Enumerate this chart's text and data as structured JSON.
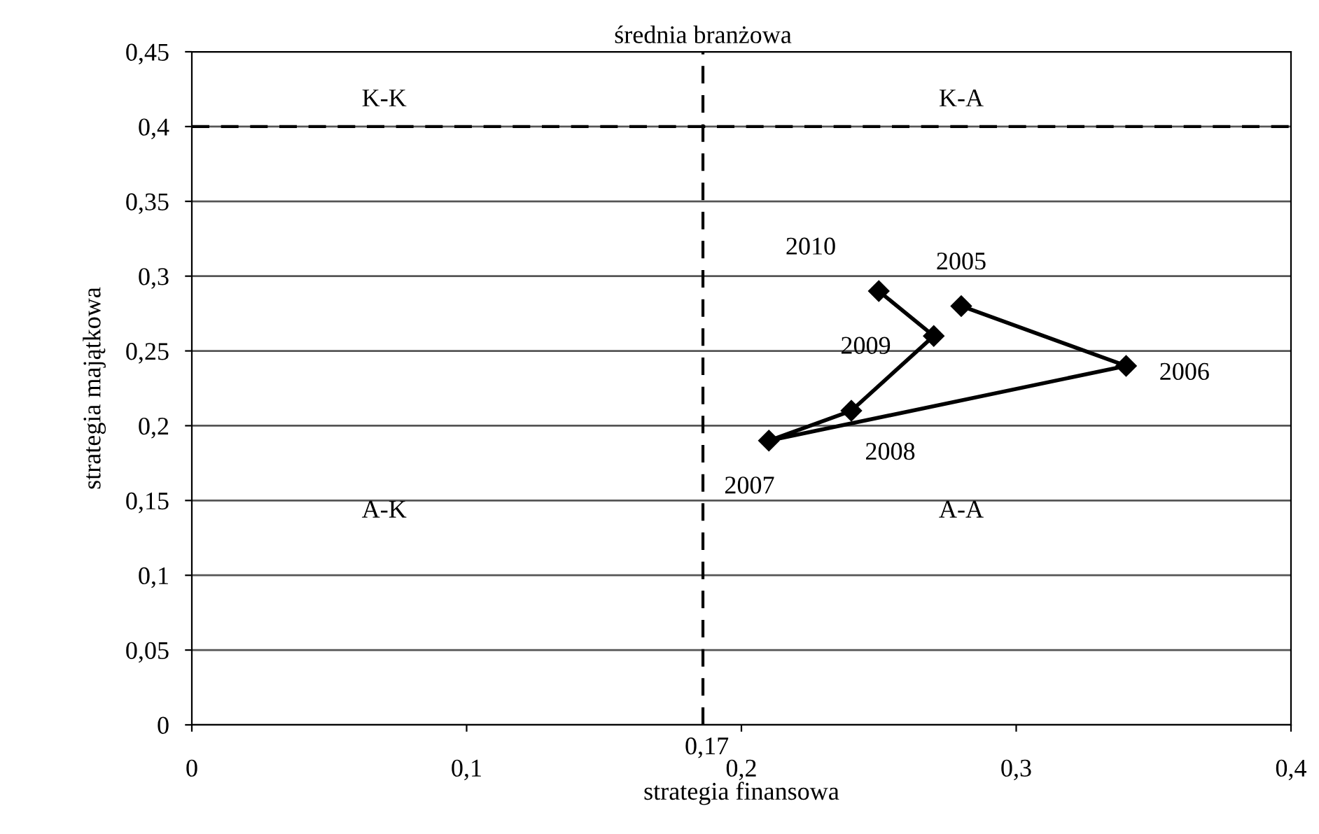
{
  "chart_data": {
    "type": "line",
    "xlabel": "strategia finansowa",
    "ylabel": "strategia majątkowa",
    "x": [
      0.28,
      0.34,
      0.21,
      0.24,
      0.27,
      0.25
    ],
    "series": [
      {
        "color": "#000000",
        "values": [
          0.28,
          0.24,
          0.19,
          0.21,
          0.26,
          0.29
        ]
      }
    ],
    "marker": "diamond",
    "line_style": "solid",
    "grid": "y",
    "xlim": [
      0,
      0.4
    ],
    "ylim": [
      0,
      0.45
    ],
    "xticks": [
      0,
      {
        "value": 0.1,
        "label": "0,1"
      },
      {
        "value": 0.2,
        "label": "0,2"
      },
      {
        "value": 0.3,
        "label": "0,3"
      },
      {
        "value": 0.4,
        "label": "0,4"
      }
    ],
    "yticks": [
      0,
      {
        "value": 0.05,
        "label": "0,05"
      },
      {
        "value": 0.1,
        "label": "0,1"
      },
      {
        "value": 0.15,
        "label": "0,15"
      },
      {
        "value": 0.2,
        "label": "0,2"
      },
      {
        "value": 0.25,
        "label": "0,25"
      },
      {
        "value": 0.3,
        "label": "0,3"
      },
      {
        "value": 0.35,
        "label": "0,35"
      },
      {
        "value": 0.4,
        "label": "0,4"
      },
      {
        "value": 0.45,
        "label": "0,45"
      }
    ],
    "ref_lines": [
      {
        "axis": "x",
        "value": 0.186,
        "label": "średnia branżowa",
        "color": "#000000",
        "line_style": "dashed"
      },
      {
        "axis": "y",
        "value": 0.4,
        "color": "#000000",
        "line_style": "dashed"
      }
    ],
    "annotations": [
      {
        "text": "2005",
        "x": 0.28,
        "y": 0.28
      },
      {
        "text": "2006",
        "x": 0.34,
        "y": 0.24
      },
      {
        "text": "2007",
        "x": 0.21,
        "y": 0.19
      },
      {
        "text": "2008",
        "x": 0.24,
        "y": 0.21
      },
      {
        "text": "2009",
        "x": 0.27,
        "y": 0.26
      },
      {
        "text": "2010",
        "x": 0.25,
        "y": 0.29
      },
      {
        "text": "0,17",
        "x": 0.186,
        "y": 0
      },
      "K-K",
      "K-A",
      "A-K",
      "A-A"
    ]
  }
}
